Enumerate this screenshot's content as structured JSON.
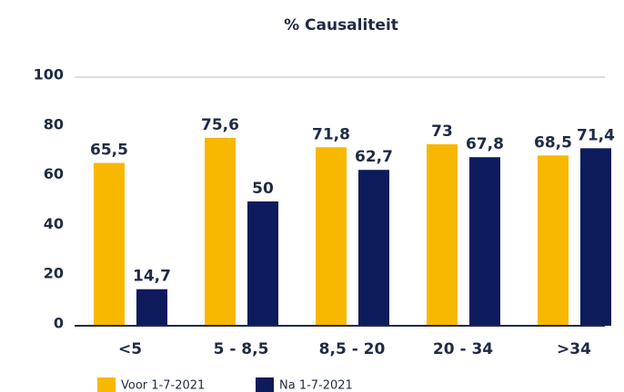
{
  "chart_data": {
    "type": "bar",
    "title": "% Causaliteit",
    "categories": [
      "<5",
      "5 - 8,5",
      "8,5 - 20",
      "20 - 34",
      ">34"
    ],
    "series": [
      {
        "name": "Voor 1-7-2021",
        "color": "#f9b800",
        "values": [
          65.5,
          75.6,
          71.8,
          73,
          68.5
        ],
        "value_labels": [
          "65,5",
          "75,6",
          "71,8",
          "73",
          "68,5"
        ]
      },
      {
        "name": "Na 1-7-2021",
        "color": "#0d1b5c",
        "values": [
          14.7,
          50,
          62.7,
          67.8,
          71.4
        ],
        "value_labels": [
          "14,7",
          "50",
          "62,7",
          "67,8",
          "71,4"
        ]
      }
    ],
    "ylim": [
      0,
      100
    ],
    "yticks": [
      0,
      20,
      40,
      60,
      80,
      100
    ],
    "grid": false
  }
}
